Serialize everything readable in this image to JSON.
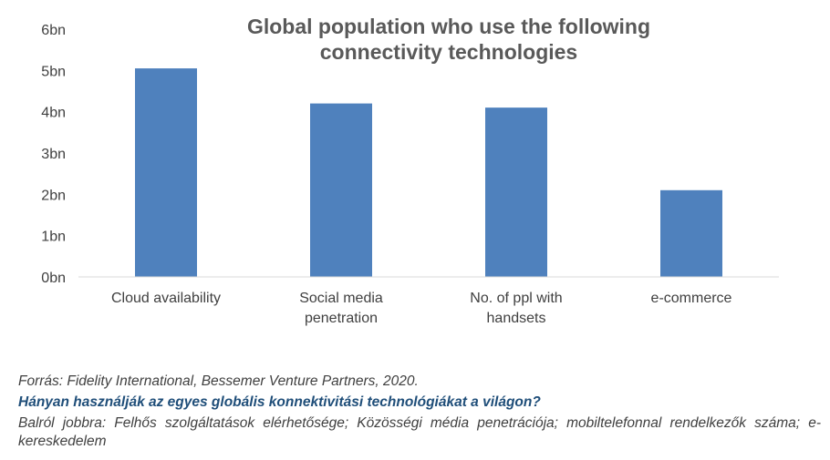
{
  "chart_data": {
    "type": "bar",
    "title": [
      "Global population who use the following",
      "connectivity technologies"
    ],
    "categories": [
      [
        "Cloud availability"
      ],
      [
        "Social media",
        "penetration"
      ],
      [
        "No. of ppl with",
        "handsets"
      ],
      [
        "e-commerce"
      ]
    ],
    "values": [
      5.05,
      4.2,
      4.1,
      2.1
    ],
    "ylim": [
      0,
      6
    ],
    "yticks": [
      "0bn",
      "1bn",
      "2bn",
      "3bn",
      "4bn",
      "5bn",
      "6bn"
    ],
    "grid": false,
    "bar_color": "#4f81bd"
  },
  "notes": {
    "source": "Forrás: Fidelity International, Bessemer Venture Partners, 2020.",
    "question": "Hányan használják az egyes globális konnektivitási technológiákat a világon?",
    "legend": "Balról jobbra: Felhős szolgáltatások elérhetősége; Közösségi média penetrációja; mobiltelefonnal rendelkezők száma; e-kereskedelem"
  }
}
